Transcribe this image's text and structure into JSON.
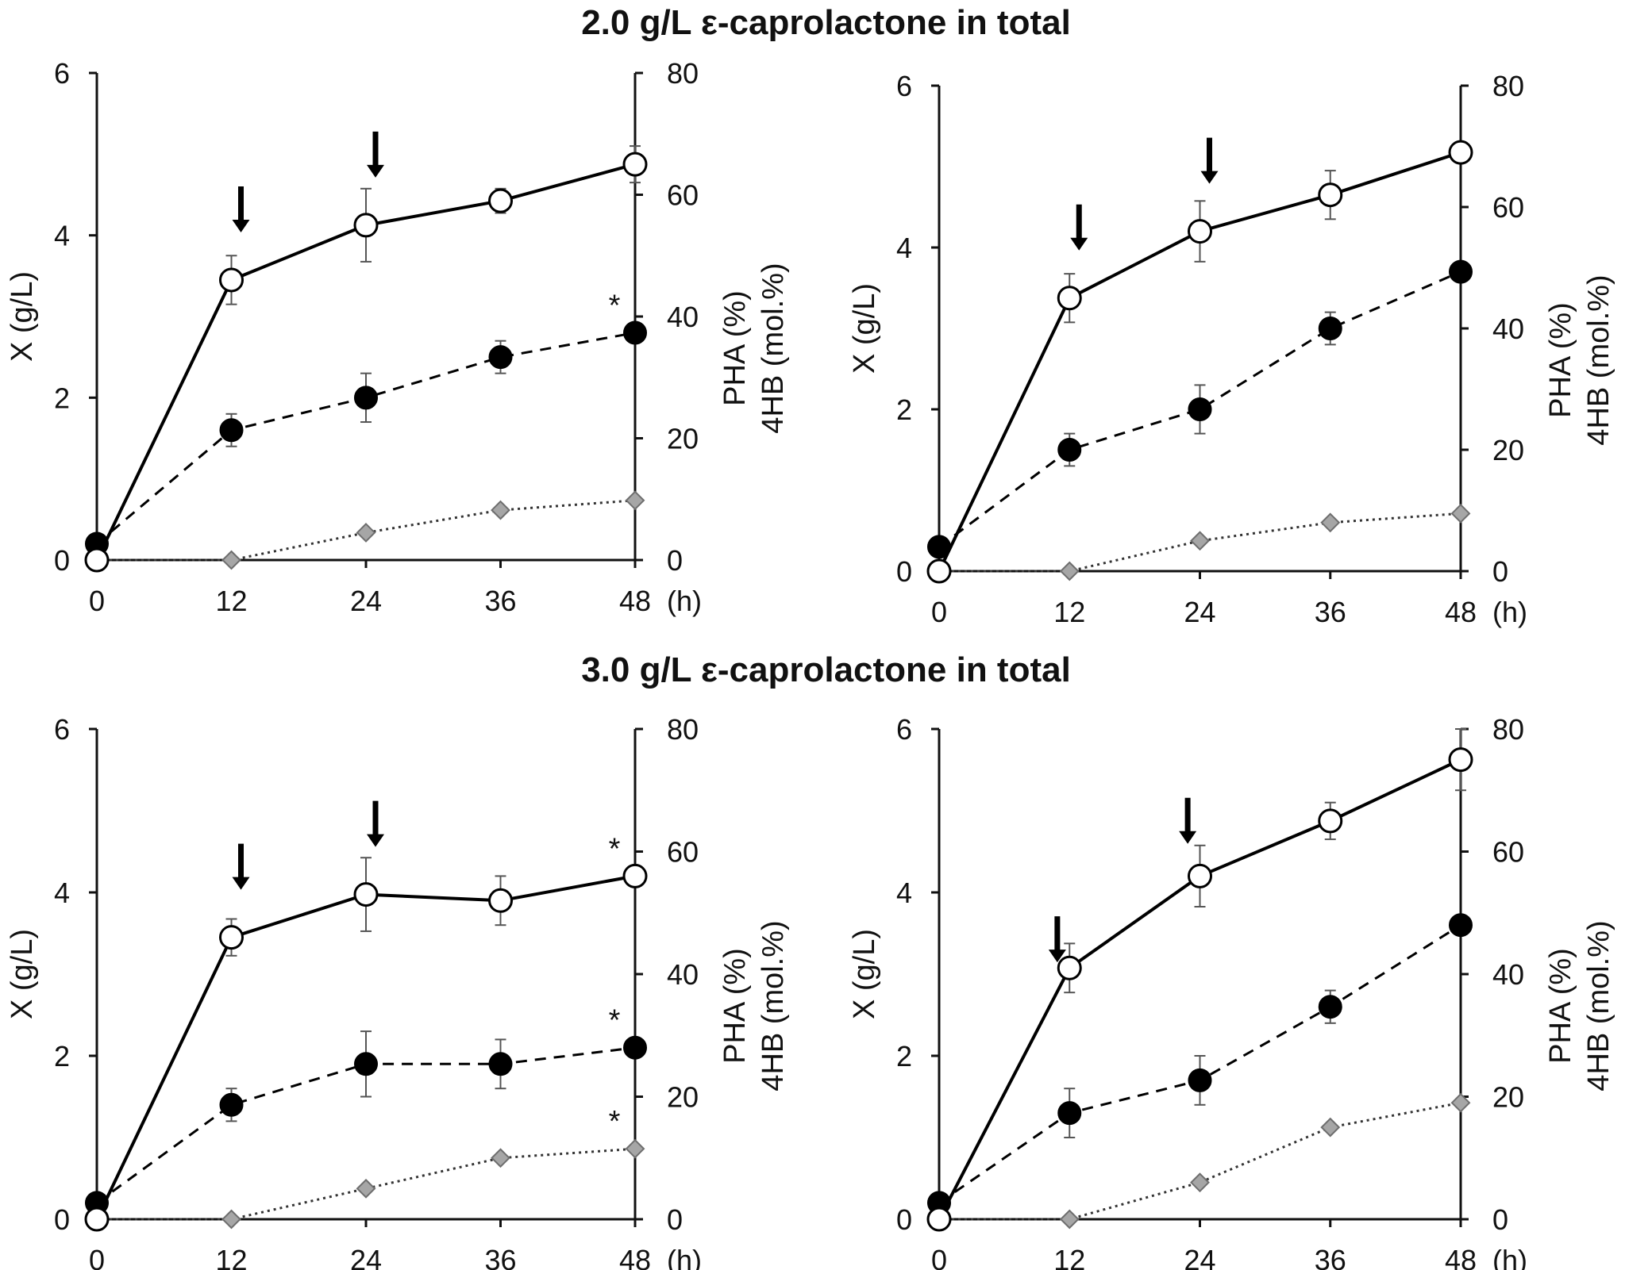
{
  "headings": {
    "top": "2.0 g/L ε-caprolactone in total",
    "bottom": "3.0 g/L ε-caprolactone in total"
  },
  "colors": {
    "axis": "#111111",
    "filled_marker": "#000000",
    "open_marker_fill": "#ffffff",
    "diamond_fill": "#a6a6a6",
    "diamond_stroke": "#6e6e6e"
  },
  "chart_data": [
    {
      "id": "top-left",
      "type": "line",
      "x": [
        0,
        12,
        24,
        36,
        48
      ],
      "xticks": [
        "0",
        "12",
        "24",
        "36",
        "48"
      ],
      "x_unit": "(h)",
      "ylabel_left": "X (g/L)",
      "ylabel_right": [
        "PHA (%)",
        "4HB (mol.%)"
      ],
      "ylim_left": [
        0,
        6
      ],
      "yticks_left": [
        "0",
        "2",
        "4",
        "6"
      ],
      "ylim_right": [
        0,
        80
      ],
      "yticks_right": [
        "0",
        "20",
        "40",
        "60",
        "80"
      ],
      "arrows_at_h": [
        12,
        24
      ],
      "series": [
        {
          "name": "X",
          "axis": "left",
          "marker": "filled-circle",
          "line": "dashed",
          "values": [
            0.2,
            1.6,
            2.0,
            2.5,
            2.8
          ],
          "errors": [
            0,
            0.2,
            0.3,
            0.2,
            0
          ],
          "annotations": [
            {
              "x": 48,
              "text": "*"
            }
          ]
        },
        {
          "name": "PHA",
          "axis": "right",
          "marker": "open-circle",
          "line": "solid",
          "values": [
            0,
            46,
            55,
            59,
            65
          ],
          "errors": [
            0,
            4,
            6,
            2,
            3
          ],
          "annotations": []
        },
        {
          "name": "4HB",
          "axis": "right",
          "marker": "diamond",
          "line": "dotted",
          "values": [
            0,
            0,
            4.5,
            8.2,
            9.8
          ],
          "errors": [
            0,
            0,
            0,
            0,
            0
          ],
          "annotations": []
        }
      ]
    },
    {
      "id": "top-right",
      "type": "line",
      "x": [
        0,
        12,
        24,
        36,
        48
      ],
      "xticks": [
        "0",
        "12",
        "24",
        "36",
        "48"
      ],
      "x_unit": "(h)",
      "ylabel_left": "X (g/L)",
      "ylabel_right": [
        "PHA (%)",
        "4HB (mol.%)"
      ],
      "ylim_left": [
        0,
        6
      ],
      "yticks_left": [
        "0",
        "2",
        "4",
        "6"
      ],
      "ylim_right": [
        0,
        80
      ],
      "yticks_right": [
        "0",
        "20",
        "40",
        "60",
        "80"
      ],
      "arrows_at_h": [
        12,
        24
      ],
      "series": [
        {
          "name": "X",
          "axis": "left",
          "marker": "filled-circle",
          "line": "dashed",
          "values": [
            0.3,
            1.5,
            2.0,
            3.0,
            3.7
          ],
          "errors": [
            0,
            0.2,
            0.3,
            0.2,
            0
          ],
          "annotations": []
        },
        {
          "name": "PHA",
          "axis": "right",
          "marker": "open-circle",
          "line": "solid",
          "values": [
            0,
            45,
            56,
            62,
            69
          ],
          "errors": [
            0,
            4,
            5,
            4,
            0
          ],
          "annotations": []
        },
        {
          "name": "4HB",
          "axis": "right",
          "marker": "diamond",
          "line": "dotted",
          "values": [
            0,
            0,
            5,
            8,
            9.5
          ],
          "errors": [
            0,
            0,
            0,
            0,
            0
          ],
          "annotations": []
        }
      ]
    },
    {
      "id": "bottom-left",
      "type": "line",
      "x": [
        0,
        12,
        24,
        36,
        48
      ],
      "xticks": [
        "0",
        "12",
        "24",
        "36",
        "48"
      ],
      "x_unit": "(h)",
      "ylabel_left": "X (g/L)",
      "ylabel_right": [
        "PHA (%)",
        "4HB (mol.%)"
      ],
      "ylim_left": [
        0,
        6
      ],
      "yticks_left": [
        "0",
        "2",
        "4",
        "6"
      ],
      "ylim_right": [
        0,
        80
      ],
      "yticks_right": [
        "0",
        "20",
        "40",
        "60",
        "80"
      ],
      "arrows_at_h": [
        12,
        24
      ],
      "series": [
        {
          "name": "X",
          "axis": "left",
          "marker": "filled-circle",
          "line": "dashed",
          "values": [
            0.2,
            1.4,
            1.9,
            1.9,
            2.1
          ],
          "errors": [
            0,
            0.2,
            0.4,
            0.3,
            0
          ],
          "annotations": [
            {
              "x": 48,
              "text": "*"
            }
          ]
        },
        {
          "name": "PHA",
          "axis": "right",
          "marker": "open-circle",
          "line": "solid",
          "values": [
            0,
            46,
            53,
            52,
            56
          ],
          "errors": [
            0,
            3,
            6,
            4,
            0
          ],
          "annotations": [
            {
              "x": 48,
              "text": "*"
            }
          ]
        },
        {
          "name": "4HB",
          "axis": "right",
          "marker": "diamond",
          "line": "dotted",
          "values": [
            0,
            0,
            5,
            10,
            11.5
          ],
          "errors": [
            0,
            0,
            0,
            0,
            0
          ],
          "annotations": [
            {
              "x": 48,
              "text": "*"
            }
          ]
        }
      ]
    },
    {
      "id": "bottom-right",
      "type": "line",
      "x": [
        0,
        12,
        24,
        36,
        48
      ],
      "xticks": [
        "0",
        "12",
        "24",
        "36",
        "48"
      ],
      "x_unit": "(h)",
      "ylabel_left": "X (g/L)",
      "ylabel_right": [
        "PHA (%)",
        "4HB (mol.%)"
      ],
      "ylim_left": [
        0,
        6
      ],
      "yticks_left": [
        "0",
        "2",
        "4",
        "6"
      ],
      "ylim_right": [
        0,
        80
      ],
      "yticks_right": [
        "0",
        "20",
        "40",
        "60",
        "80"
      ],
      "arrows_at_h": [
        10,
        22
      ],
      "series": [
        {
          "name": "X",
          "axis": "left",
          "marker": "filled-circle",
          "line": "dashed",
          "values": [
            0.2,
            1.3,
            1.7,
            2.6,
            3.6
          ],
          "errors": [
            0,
            0.3,
            0.3,
            0.2,
            0
          ],
          "annotations": []
        },
        {
          "name": "PHA",
          "axis": "right",
          "marker": "open-circle",
          "line": "solid",
          "values": [
            0,
            41,
            56,
            65,
            75
          ],
          "errors": [
            0,
            4,
            5,
            3,
            5
          ],
          "annotations": []
        },
        {
          "name": "4HB",
          "axis": "right",
          "marker": "diamond",
          "line": "dotted",
          "values": [
            0,
            0,
            6,
            15,
            19
          ],
          "errors": [
            0,
            0,
            0,
            0,
            0
          ],
          "annotations": []
        }
      ]
    }
  ]
}
